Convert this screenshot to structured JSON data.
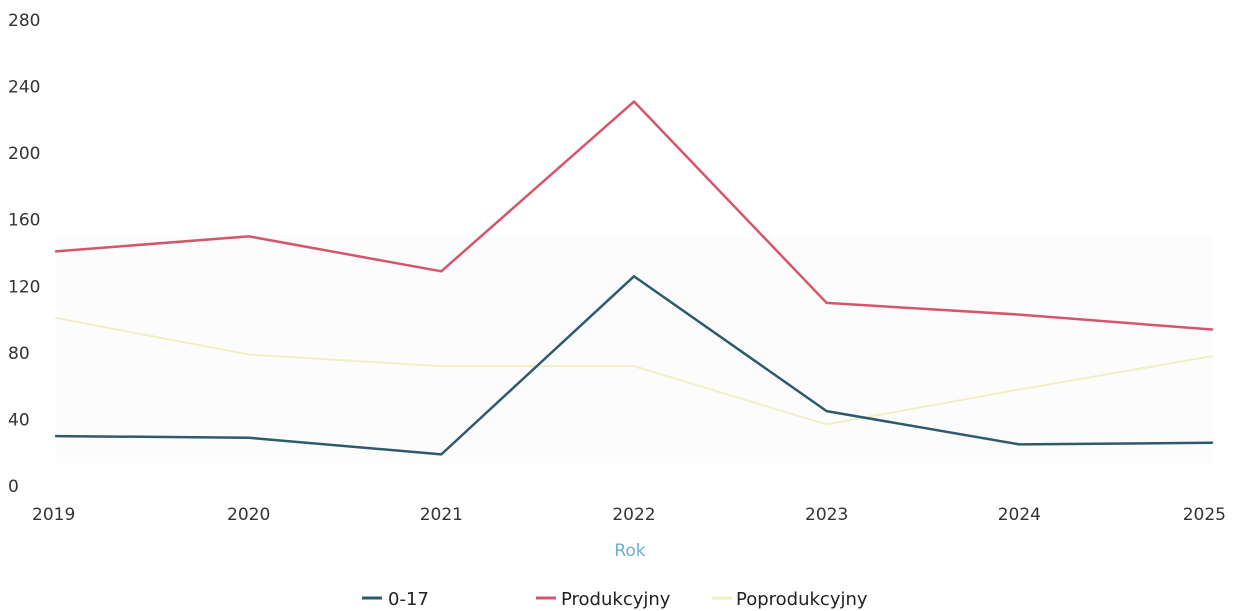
{
  "chart_data": {
    "type": "line",
    "x": [
      "2019",
      "2020",
      "2021",
      "2022",
      "2023",
      "2024",
      "2025"
    ],
    "series": [
      {
        "name": "0-17",
        "values": [
          30,
          29,
          19,
          126,
          45,
          25,
          26
        ],
        "color": "#2e5a6e"
      },
      {
        "name": "Produkcyjny",
        "values": [
          141,
          150,
          129,
          231,
          110,
          103,
          94
        ],
        "color": "#d4566c"
      },
      {
        "name": "Poprodukcyjny",
        "values": [
          101,
          79,
          72,
          72,
          37,
          58,
          78
        ],
        "color": "#f1efc4"
      }
    ],
    "xlabel": "Rok",
    "ylabel": "",
    "ylim": [
      0,
      280
    ],
    "yticks": [
      0,
      40,
      80,
      120,
      160,
      200,
      240,
      280
    ],
    "grid": false,
    "legend_position": "bottom-center"
  }
}
